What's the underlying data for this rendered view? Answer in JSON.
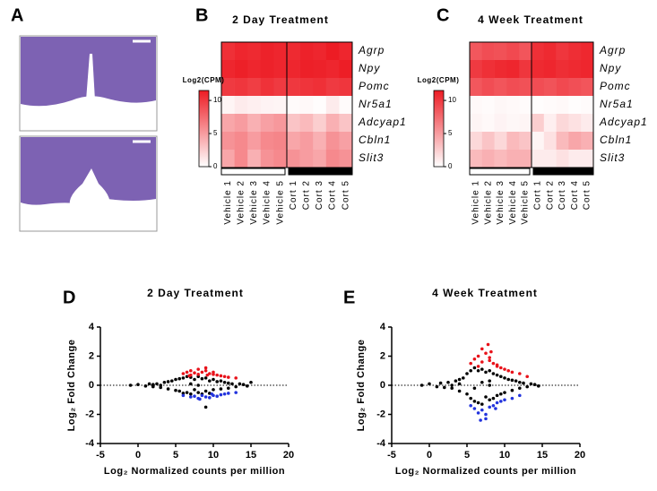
{
  "panel_labels": [
    "A",
    "B",
    "C",
    "D",
    "E"
  ],
  "chart_data": [
    {
      "type": "heatmap",
      "title": "2 Day Treatment",
      "color": "#ed1c24",
      "rows": [
        "Agrp",
        "Npy",
        "Pomc",
        "Nr5a1",
        "Adcyap1",
        "Cbln1",
        "Slit3"
      ],
      "columns": [
        "Vehicle 1",
        "Vehicle 2",
        "Vehicle 3",
        "Vehicle 4",
        "Vehicle 5",
        "Cort 1",
        "Cort 2",
        "Cort 3",
        "Cort 4",
        "Cort 5"
      ],
      "values": [
        [
          10.5,
          11,
          10.8,
          11.2,
          11,
          10.8,
          11.2,
          11,
          11.5,
          11
        ],
        [
          11,
          11.3,
          11,
          11.2,
          11,
          11,
          11.3,
          11.2,
          11,
          11.4
        ],
        [
          10,
          10.2,
          9.8,
          10.4,
          10,
          10.1,
          10.3,
          10.5,
          10,
          10.2
        ],
        [
          0.5,
          1,
          0.8,
          0.6,
          0.5,
          0.2,
          0.3,
          0.1,
          1,
          0.2
        ],
        [
          4.5,
          5,
          4,
          4.8,
          5.2,
          3,
          3.5,
          2.5,
          4,
          3
        ],
        [
          5.5,
          6,
          5,
          6,
          6.2,
          4.5,
          5,
          4,
          5.5,
          4.8
        ],
        [
          4.5,
          6,
          4,
          5.5,
          6,
          5.5,
          5,
          4.5,
          6,
          5.5
        ]
      ],
      "colorbar_title": "Log2(CPM)",
      "clim": [
        0,
        11.5
      ],
      "cticks": [
        0,
        5,
        10
      ]
    },
    {
      "type": "heatmap",
      "title": "4 Week Treatment",
      "color": "#ed1c24",
      "rows": [
        "Agrp",
        "Npy",
        "Pomc",
        "Nr5a1",
        "Adcyap1",
        "Cbln1",
        "Slit3"
      ],
      "columns": [
        "Vehicle 1",
        "Vehicle 2",
        "Vehicle 3",
        "Vehicle 4",
        "Vehicle 5",
        "Cort 1",
        "Cort 2",
        "Cort 3",
        "Cort 4",
        "Cort 5"
      ],
      "values": [
        [
          8.5,
          9,
          8.8,
          9.2,
          8.6,
          10.5,
          10.8,
          10.2,
          10.6,
          10.9
        ],
        [
          10,
          10.5,
          10.8,
          11,
          10.2,
          10.8,
          11,
          10.6,
          10.8,
          11
        ],
        [
          8.5,
          9,
          8.6,
          9,
          8.8,
          9,
          8.7,
          9.2,
          8.9,
          8.6
        ],
        [
          0.3,
          0.2,
          0.4,
          0.3,
          0.2,
          0.1,
          0.2,
          0.3,
          0.1,
          0.2
        ],
        [
          0.5,
          0.3,
          0.6,
          0.4,
          0.5,
          2.5,
          0.8,
          2,
          1.5,
          1
        ],
        [
          2,
          3,
          2,
          3.5,
          3,
          0.5,
          1.5,
          3.5,
          4.5,
          4
        ],
        [
          3.5,
          4,
          3.5,
          4,
          4,
          1,
          1,
          1.5,
          1,
          1
        ]
      ],
      "colorbar_title": "Log2(CPM)",
      "clim": [
        0,
        11.5
      ],
      "cticks": [
        0,
        5,
        10
      ]
    },
    {
      "type": "scatter",
      "title": "2 Day Treatment",
      "x_label": "Log₂ Normalized counts per million",
      "y_label": "Log₂ Fold Change",
      "xlim": [
        -5,
        20
      ],
      "xticks": [
        -5,
        0,
        5,
        10,
        15,
        20
      ],
      "ylim": [
        -4,
        4
      ],
      "yticks": [
        -4,
        -2,
        0,
        2,
        4
      ],
      "reference_line": 0,
      "series": [
        {
          "color": "#000000",
          "x": [
            -1,
            0,
            1,
            1.5,
            2,
            2.5,
            3,
            3.5,
            4,
            4,
            4.5,
            5,
            5,
            5.5,
            5.5,
            6,
            6,
            6.5,
            6.5,
            7,
            7,
            7,
            7.5,
            7.5,
            8,
            8,
            8,
            8.5,
            8.5,
            9,
            9,
            9.5,
            9.5,
            10,
            10,
            10.5,
            11,
            11,
            11.5,
            12,
            12,
            12.5,
            13,
            13.5,
            14,
            14.5,
            15,
            3,
            2,
            9
          ],
          "values": [
            0,
            0.05,
            -0.05,
            0.1,
            -0.1,
            0.1,
            -0.15,
            0.2,
            0.25,
            -0.25,
            0.3,
            -0.35,
            0.4,
            0.45,
            -0.4,
            0.5,
            -0.55,
            0.6,
            -0.5,
            0.55,
            -0.6,
            0.1,
            0.4,
            -0.3,
            0.6,
            -0.5,
            0,
            0.45,
            -0.6,
            0.5,
            -0.4,
            0.3,
            -0.55,
            0.4,
            -0.3,
            0.25,
            0.3,
            -0.25,
            0.2,
            0.15,
            -0.2,
            0.1,
            -0.1,
            0.1,
            0.05,
            -0.05,
            0.2,
            0,
            0.05,
            -1.5
          ]
        },
        {
          "color": "#e8121a",
          "x": [
            6,
            6.5,
            7,
            7.5,
            8,
            8.5,
            9,
            9.5,
            10,
            10.5,
            11,
            11.5,
            12,
            7,
            8,
            9,
            10,
            13,
            6.8,
            9.2
          ],
          "values": [
            0.8,
            0.9,
            1,
            0.85,
            1.1,
            0.9,
            1.0,
            0.8,
            0.75,
            0.7,
            0.65,
            0.6,
            0.55,
            0.7,
            0.75,
            1.2,
            0.9,
            0.5,
            0.65,
            0.7
          ]
        },
        {
          "color": "#2233dd",
          "x": [
            6,
            7,
            7.5,
            8,
            8.5,
            9,
            9.5,
            10,
            10.5,
            11,
            11.5,
            12,
            8.2,
            9.8,
            13
          ],
          "values": [
            -0.7,
            -0.8,
            -0.75,
            -0.9,
            -0.7,
            -0.8,
            -0.85,
            -0.7,
            -0.75,
            -0.65,
            -0.6,
            -0.55,
            -0.95,
            -0.6,
            -0.5
          ]
        }
      ]
    },
    {
      "type": "scatter",
      "title": "4 Week Treatment",
      "x_label": "Log₂ Normalized counts per million",
      "y_label": "Log₂ Fold Change",
      "xlim": [
        -5,
        20
      ],
      "xticks": [
        -5,
        0,
        5,
        10,
        15,
        20
      ],
      "ylim": [
        -4,
        4
      ],
      "yticks": [
        -4,
        -2,
        0,
        2,
        4
      ],
      "reference_line": 0,
      "series": [
        {
          "color": "#000000",
          "x": [
            -1,
            0,
            1,
            1.5,
            2,
            2.5,
            3,
            3.5,
            4,
            4,
            4.5,
            5,
            5,
            5.5,
            5.5,
            6,
            6,
            6.5,
            6.5,
            7,
            7,
            7,
            7.5,
            7.5,
            8,
            8,
            8,
            8.5,
            8.5,
            9,
            9,
            9.5,
            9.5,
            10,
            10,
            10.5,
            11,
            11,
            11.5,
            12,
            12,
            12.5,
            13,
            13.5,
            14,
            14.5,
            3,
            4,
            6,
            8
          ],
          "values": [
            0,
            0.1,
            -0.1,
            0.15,
            -0.15,
            0.2,
            -0.2,
            0.3,
            0.4,
            -0.4,
            0.5,
            -0.6,
            0.8,
            1,
            -0.9,
            1.2,
            -1.1,
            1,
            -1.2,
            1.1,
            -1.3,
            0.2,
            0.9,
            -0.8,
            1,
            -1,
            0,
            0.8,
            -0.9,
            0.7,
            -0.7,
            0.6,
            -0.6,
            0.5,
            -0.5,
            0.4,
            0.35,
            -0.35,
            0.3,
            0.2,
            -0.2,
            0.15,
            -0.1,
            0.1,
            0.05,
            -0.05,
            0,
            0.1,
            -0.2,
            0.3
          ]
        },
        {
          "color": "#e8121a",
          "x": [
            5.5,
            6,
            6.5,
            7,
            7.5,
            8,
            8.5,
            9,
            9.5,
            10,
            10.5,
            11,
            7,
            8,
            9,
            6.5,
            7.8,
            12,
            13,
            8.2
          ],
          "values": [
            1.5,
            1.8,
            2,
            1.6,
            2.2,
            1.7,
            1.5,
            1.4,
            1.2,
            1.1,
            1,
            0.9,
            2.5,
            1.9,
            1.3,
            1.3,
            2.8,
            0.8,
            0.6,
            2.3
          ]
        },
        {
          "color": "#2233dd",
          "x": [
            5.5,
            6,
            6.5,
            7,
            7.5,
            8,
            8.5,
            9,
            9.5,
            10,
            11,
            6.8,
            7.5,
            8.8,
            12
          ],
          "values": [
            -1.4,
            -1.6,
            -1.9,
            -1.7,
            -2,
            -1.5,
            -1.4,
            -1.2,
            -1.1,
            -1,
            -0.9,
            -2.4,
            -2.3,
            -1.6,
            -0.7
          ]
        }
      ]
    }
  ]
}
